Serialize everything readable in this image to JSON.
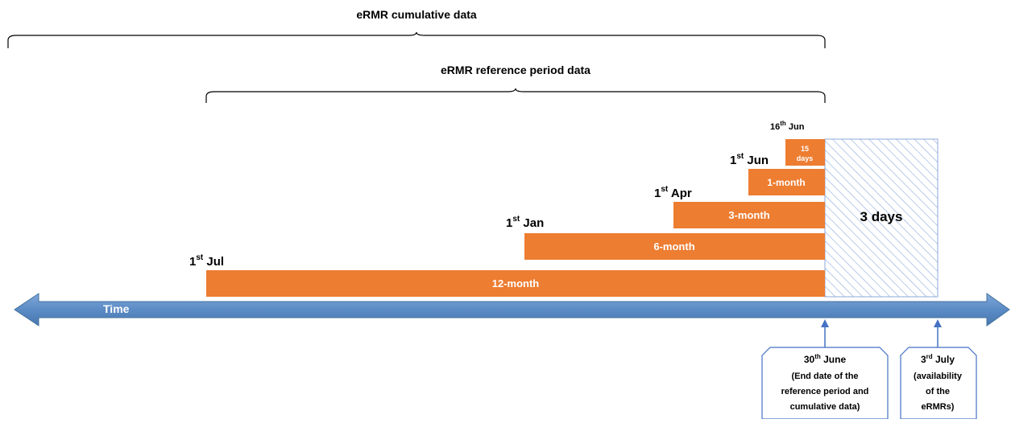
{
  "brackets": {
    "cumulative_label": "eRMR cumulative data",
    "reference_label": "eRMR reference period data"
  },
  "bars": [
    {
      "label": "12-month",
      "start": {
        "day": "1",
        "sup": "st",
        "month": "Jul"
      }
    },
    {
      "label": "6-month",
      "start": {
        "day": "1",
        "sup": "st",
        "month": "Jan"
      }
    },
    {
      "label": "3-month",
      "start": {
        "day": "1",
        "sup": "st",
        "month": "Apr"
      }
    },
    {
      "label": "1-month",
      "start": {
        "day": "1",
        "sup": "st",
        "month": "Jun"
      }
    },
    {
      "label_line1": "15",
      "label_line2": "days",
      "start": {
        "day": "16",
        "sup": "th",
        "month": "Jun"
      }
    }
  ],
  "gap_label": "3 days",
  "time_label": "Time",
  "callouts": {
    "end_date": {
      "day": "30",
      "sup": "th",
      "month": "June",
      "lines": [
        "(End date of the",
        "reference period and",
        "cumulative data)"
      ]
    },
    "availability": {
      "day": "3",
      "sup": "rd",
      "month": "July",
      "lines": [
        "(availability",
        "of the",
        "eRMRs)"
      ]
    }
  },
  "colors": {
    "bar_fill": "#ED7D31",
    "bar_text": "#FFFFFF",
    "arrow_fill": "#5B8BC5",
    "arrow_stroke": "#41719C",
    "hatch": "#8EA9DB",
    "text": "#000000"
  }
}
